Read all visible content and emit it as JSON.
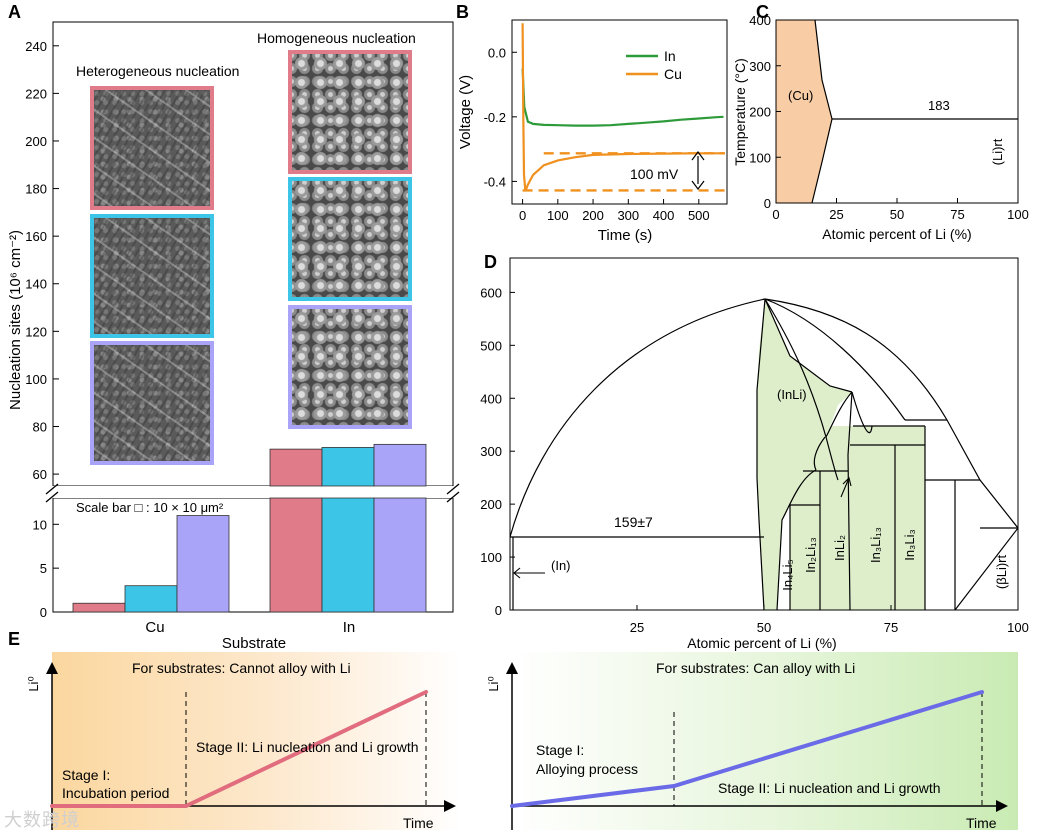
{
  "panel_labels": {
    "a": "A",
    "b": "B",
    "c": "C",
    "d": "D",
    "e": "E"
  },
  "panel_a": {
    "title_het": "Heterogeneous nucleation",
    "title_hom": "Homogeneous nucleation",
    "scale_bar": "Scale bar □ : 10 × 10 μm²",
    "ylabel": "Nucleation sites (10⁶ cm⁻²)",
    "xlabel": "Substrate",
    "colors": {
      "red": "#e07b8a",
      "cyan": "#3cc5e6",
      "purple": "#a9a4f7"
    }
  },
  "panel_b": {
    "ylabel": "Voltage (V)",
    "xlabel": "Time (s)",
    "legend": [
      "In",
      "Cu"
    ],
    "annotation": "100 mV",
    "colors": {
      "In": "#2e9b3a",
      "Cu": "#f0901e"
    }
  },
  "panel_c": {
    "ylabel": "Temperature (°C)",
    "xlabel": "Atomic percent of Li (%)",
    "phase_cu": "(Cu)",
    "temp_183": "183",
    "phase_li": "(Li)rt",
    "fill": "#f8cda5"
  },
  "panel_d": {
    "xlabel": "Atomic percent of Li (%)",
    "label_159": "159±7",
    "phase_in": "(In)",
    "phase_inli": "(InLi)",
    "phase_bli": "(βLi)rt",
    "compounds": [
      "In₄Li₅",
      "In₂Li₁₃",
      "InLi₂",
      "In₃Li₁₃",
      "In₃Li₃"
    ],
    "fill": "#deeecb"
  },
  "panel_e": {
    "left_title": "For substrates: Cannot alloy with Li",
    "right_title": "For substrates: Can alloy with Li",
    "ylabel": "Li⁰",
    "xlabel": "Time",
    "left_stage1_l1": "Stage I:",
    "left_stage1_l2": "Incubation period",
    "left_stage2": "Stage II: Li nucleation and Li growth",
    "right_stage1_l1": "Stage I:",
    "right_stage1_l2": "Alloying process",
    "right_stage2": "Stage II: Li nucleation and Li growth",
    "colors": {
      "left_line": "#e06c7e",
      "right_line": "#6b6be8"
    }
  },
  "watermark": "大数跨境",
  "chart_data": [
    {
      "type": "bar",
      "title": "A",
      "xlabel": "Substrate",
      "ylabel": "Nucleation sites (10^6 cm^-2)",
      "categories": [
        "Cu",
        "In"
      ],
      "series": [
        {
          "name": "sample 1 (red)",
          "values": [
            1.0,
            70.5
          ]
        },
        {
          "name": "sample 2 (cyan)",
          "values": [
            3.0,
            71.2
          ]
        },
        {
          "name": "sample 3 (purple)",
          "values": [
            11.0,
            72.5
          ]
        }
      ],
      "axis_break": [
        13,
        55
      ],
      "y_ticks_lower": [
        0,
        5,
        10
      ],
      "y_ticks_upper": [
        60,
        80,
        100,
        120,
        140,
        160,
        180,
        200,
        220,
        240
      ]
    },
    {
      "type": "line",
      "title": "B",
      "xlabel": "Time (s)",
      "ylabel": "Voltage (V)",
      "xlim": [
        -30,
        580
      ],
      "ylim": [
        -0.47,
        0.1
      ],
      "x_ticks": [
        0,
        100,
        200,
        300,
        400,
        500
      ],
      "y_ticks": [
        0.0,
        -0.2,
        -0.4
      ],
      "series": [
        {
          "name": "In",
          "x": [
            0,
            5,
            15,
            30,
            60,
            100,
            150,
            200,
            250,
            300,
            350,
            400,
            450,
            500,
            550,
            570
          ],
          "y": [
            -0.05,
            -0.17,
            -0.215,
            -0.222,
            -0.225,
            -0.226,
            -0.227,
            -0.227,
            -0.226,
            -0.222,
            -0.218,
            -0.214,
            -0.209,
            -0.205,
            -0.201,
            -0.2
          ]
        },
        {
          "name": "Cu",
          "x": [
            0,
            2,
            4,
            8,
            15,
            30,
            60,
            100,
            150,
            200,
            300,
            400,
            500,
            570
          ],
          "y": [
            0.09,
            -0.2,
            -0.38,
            -0.43,
            -0.41,
            -0.38,
            -0.35,
            -0.335,
            -0.325,
            -0.318,
            -0.315,
            -0.314,
            -0.313,
            -0.313
          ]
        }
      ],
      "reference_lines": [
        -0.313,
        -0.428
      ],
      "annotation": "100 mV"
    }
  ]
}
